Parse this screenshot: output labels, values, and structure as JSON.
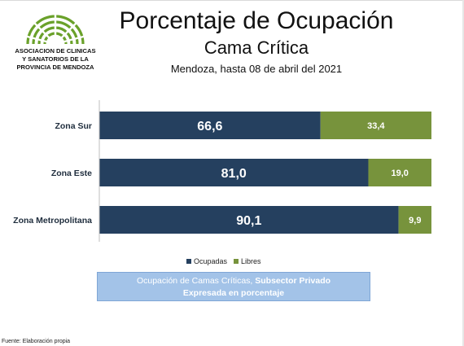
{
  "logo": {
    "lines": [
      "ASOCIACION DE CLINICAS",
      "Y SANATORIOS DE LA",
      "PROVINCIA DE MENDOZA"
    ]
  },
  "header": {
    "title": "Porcentaje de Ocupación",
    "subtitle": "Cama Crítica",
    "date": "Mendoza, hasta 08 de abril del 2021"
  },
  "colors": {
    "ocupadas": "#25405f",
    "libres": "#77933c",
    "caption_bg": "#a3c3e8"
  },
  "chart_data": {
    "type": "bar",
    "orientation": "horizontal",
    "stacked": true,
    "categories": [
      "Zona Sur",
      "Zona Este",
      "Zona Metropolitana"
    ],
    "series": [
      {
        "name": "Ocupadas",
        "values": [
          66.6,
          81.0,
          90.1
        ],
        "labels": [
          "66,6",
          "81,0",
          "90,1"
        ]
      },
      {
        "name": "Libres",
        "values": [
          33.4,
          19.0,
          9.9
        ],
        "labels": [
          "33,4",
          "19,0",
          "9,9"
        ]
      }
    ],
    "xlim": [
      0,
      100
    ],
    "grid": false,
    "legend_position": "bottom"
  },
  "caption": {
    "line1_normal": "Ocupación de Camas Críticas, ",
    "line1_bold": "Subsector Privado",
    "line2": "Expresada en porcentaje"
  },
  "source": "Fuente: Elaboración propia"
}
